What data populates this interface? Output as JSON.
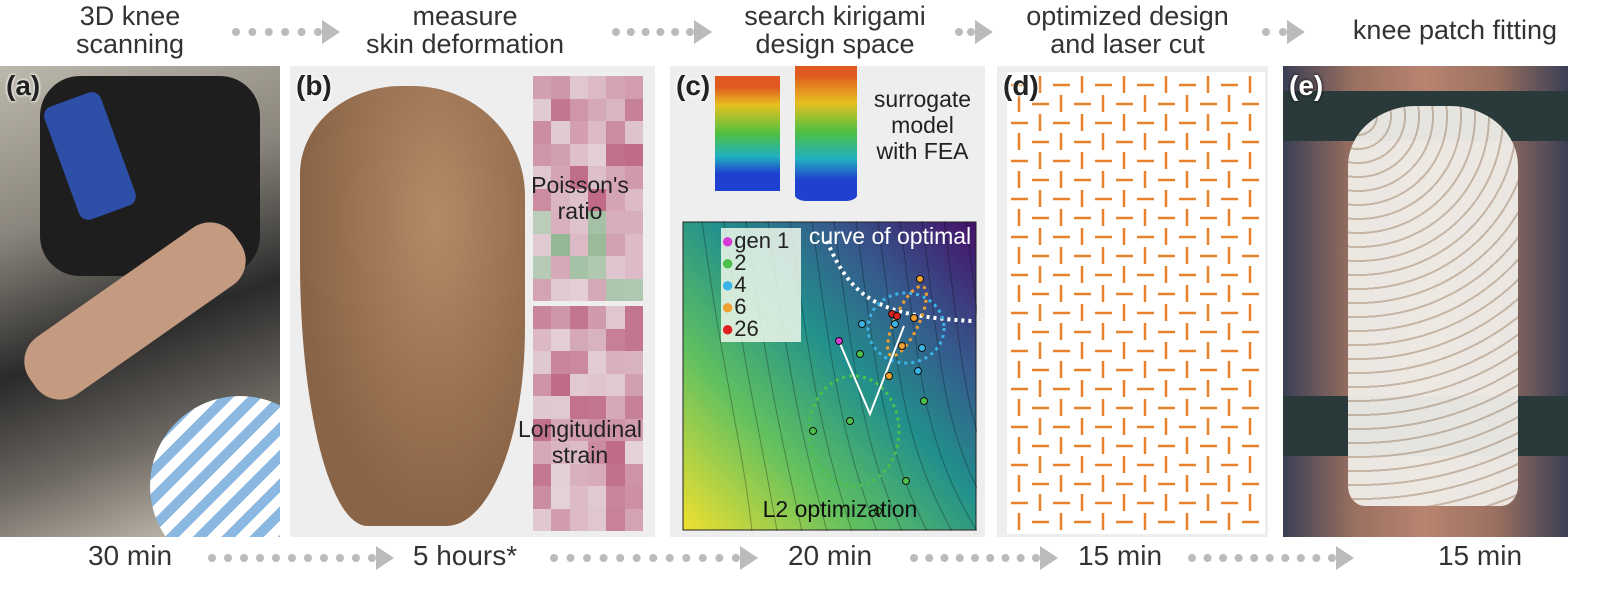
{
  "steps": [
    {
      "title": "3D knee\nscanning",
      "time": "30 min"
    },
    {
      "title": "measure\nskin deformation",
      "time": "5 hours*"
    },
    {
      "title": "search kirigami\ndesign space",
      "time": "20 min"
    },
    {
      "title": "optimized design\nand laser cut",
      "time": "15 min"
    },
    {
      "title": "knee patch fitting",
      "time": "15 min"
    }
  ],
  "panels": {
    "a": {
      "label": "(a)"
    },
    "b": {
      "label": "(b)",
      "poisson": "Poisson's\nratio",
      "strain": "Longitudinal\nstrain"
    },
    "c": {
      "label": "(c)",
      "surrogate": "surrogate\nmodel\nwith FEA",
      "curve": "curve of optimal",
      "l2": "L2 optimization",
      "legend": [
        {
          "label": "gen 1",
          "color": "#d63bd6"
        },
        {
          "label": "2",
          "color": "#4cc04c"
        },
        {
          "label": "4",
          "color": "#3bb5e8"
        },
        {
          "label": "6",
          "color": "#f0a030"
        },
        {
          "label": "26",
          "color": "#e02020"
        }
      ]
    },
    "d": {
      "label": "(d)",
      "color": "#e8822e"
    },
    "e": {
      "label": "(e)"
    }
  }
}
